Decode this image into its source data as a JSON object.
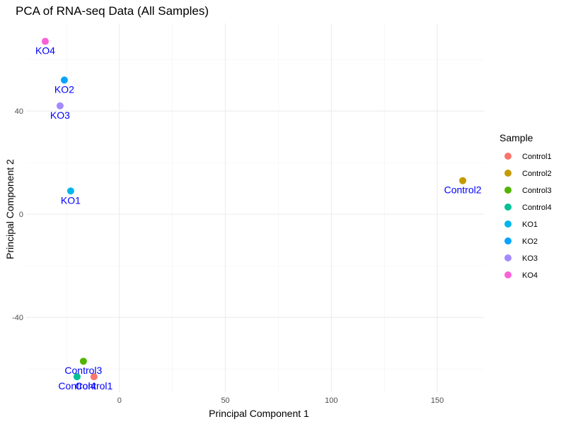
{
  "chart_data": {
    "type": "scatter",
    "title": "PCA of RNA-seq Data (All Samples)",
    "xlabel": "Principal Component 1",
    "ylabel": "Principal Component 2",
    "xlim": [
      -44,
      172
    ],
    "ylim": [
      -69,
      74
    ],
    "x_ticks": [
      0,
      50,
      100,
      150
    ],
    "y_ticks": [
      -40,
      0,
      40
    ],
    "x_minor_ticks": [
      -25,
      25,
      75,
      125
    ],
    "y_minor_ticks": [
      -60,
      -20,
      20,
      60
    ],
    "grid": true,
    "legend": {
      "title": "Sample",
      "position": "right"
    },
    "points": [
      {
        "label": "Control1",
        "x": -12,
        "y": -63,
        "color": "#F8766D"
      },
      {
        "label": "Control2",
        "x": 162,
        "y": 13,
        "color": "#C49A00"
      },
      {
        "label": "Control3",
        "x": -17,
        "y": -57,
        "color": "#53B400"
      },
      {
        "label": "Control4",
        "x": -20,
        "y": -63,
        "color": "#00C094"
      },
      {
        "label": "KO1",
        "x": -23,
        "y": 9,
        "color": "#00B6EB"
      },
      {
        "label": "KO2",
        "x": -26,
        "y": 52,
        "color": "#06A4FF"
      },
      {
        "label": "KO3",
        "x": -28,
        "y": 42,
        "color": "#A58AFF"
      },
      {
        "label": "KO4",
        "x": -35,
        "y": 67,
        "color": "#FB61D7"
      }
    ]
  }
}
